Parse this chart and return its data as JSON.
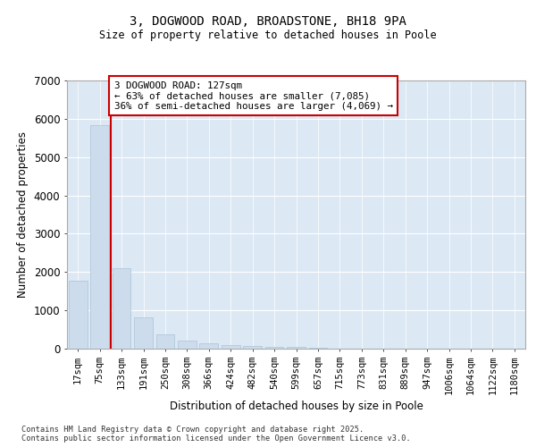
{
  "title_line1": "3, DOGWOOD ROAD, BROADSTONE, BH18 9PA",
  "title_line2": "Size of property relative to detached houses in Poole",
  "xlabel": "Distribution of detached houses by size in Poole",
  "ylabel": "Number of detached properties",
  "bar_color": "#ccdcec",
  "bar_edge_color": "#aac4d8",
  "background_color": "#dce8f4",
  "grid_color": "#ffffff",
  "vline_color": "#cc0000",
  "vline_x": 1.5,
  "annotation_box_edgecolor": "#cc0000",
  "annotation_text_line1": "3 DOGWOOD ROAD: 127sqm",
  "annotation_text_line2": "← 63% of detached houses are smaller (7,085)",
  "annotation_text_line3": "36% of semi-detached houses are larger (4,069) →",
  "categories": [
    "17sqm",
    "75sqm",
    "133sqm",
    "191sqm",
    "250sqm",
    "308sqm",
    "366sqm",
    "424sqm",
    "482sqm",
    "540sqm",
    "599sqm",
    "657sqm",
    "715sqm",
    "773sqm",
    "831sqm",
    "889sqm",
    "947sqm",
    "1006sqm",
    "1064sqm",
    "1122sqm",
    "1180sqm"
  ],
  "values": [
    1780,
    5840,
    2100,
    820,
    370,
    210,
    130,
    100,
    80,
    55,
    40,
    20,
    10,
    0,
    0,
    0,
    0,
    0,
    0,
    0,
    0
  ],
  "ylim": [
    0,
    7000
  ],
  "yticks": [
    0,
    1000,
    2000,
    3000,
    4000,
    5000,
    6000,
    7000
  ],
  "footer_line1": "Contains HM Land Registry data © Crown copyright and database right 2025.",
  "footer_line2": "Contains public sector information licensed under the Open Government Licence v3.0."
}
